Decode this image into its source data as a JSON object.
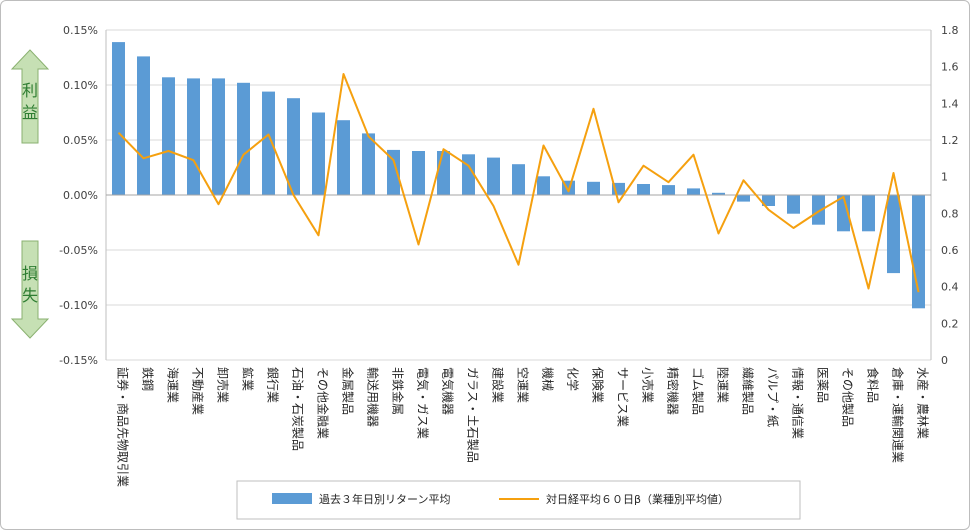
{
  "chart_data": {
    "type": "bar+line",
    "categories": [
      "証券・商品先物取引業",
      "鉄鋼",
      "海運業",
      "不動産業",
      "卸売業",
      "鉱業",
      "銀行業",
      "石油・石炭製品",
      "その他金融業",
      "金属製品",
      "輸送用機器",
      "非鉄金属",
      "電気・ガス業",
      "電気機器",
      "ガラス・土石製品",
      "建設業",
      "空運業",
      "機械",
      "化学",
      "保険業",
      "サービス業",
      "小売業",
      "精密機器",
      "ゴム製品",
      "陸運業",
      "繊維製品",
      "パルプ・紙",
      "情報・通信業",
      "医薬品",
      "その他製品",
      "食料品",
      "倉庫・運輸関連業",
      "水産・農林業"
    ],
    "series": [
      {
        "name": "過去３年日別リターン平均",
        "type": "bar",
        "axis": "left",
        "color": "#5b9bd5",
        "values": [
          0.00139,
          0.00126,
          0.00107,
          0.00106,
          0.00106,
          0.00102,
          0.00094,
          0.00088,
          0.00075,
          0.00068,
          0.00056,
          0.00041,
          0.0004,
          0.0004,
          0.00037,
          0.00034,
          0.00028,
          0.00017,
          0.00013,
          0.00012,
          0.00011,
          0.0001,
          9e-05,
          6e-05,
          2e-05,
          -6e-05,
          -0.0001,
          -0.00017,
          -0.00027,
          -0.00033,
          -0.00033,
          -0.00071,
          -0.00103
        ]
      },
      {
        "name": "対日経平均６０日β（業種別平均値）",
        "type": "line",
        "axis": "right",
        "color": "#f5a00f",
        "values": [
          1.24,
          1.1,
          1.14,
          1.09,
          0.85,
          1.12,
          1.23,
          0.9,
          0.68,
          1.56,
          1.22,
          1.09,
          0.63,
          1.15,
          1.06,
          0.84,
          0.52,
          1.17,
          0.92,
          1.37,
          0.86,
          1.06,
          0.97,
          1.12,
          0.69,
          0.98,
          0.82,
          0.72,
          0.81,
          0.89,
          0.39,
          1.02,
          0.37
        ]
      }
    ],
    "y_left": {
      "ylim": [
        -0.0015,
        0.0015
      ],
      "ticks": [
        0.0015,
        0.001,
        0.0005,
        0,
        -0.0005,
        -0.001,
        -0.0015
      ],
      "tick_labels": [
        "0.15%",
        "0.10%",
        "0.05%",
        "0.00%",
        "-0.05%",
        "-0.10%",
        "-0.15%"
      ]
    },
    "y_right": {
      "ylim": [
        0,
        1.8
      ],
      "ticks": [
        1.8,
        1.6,
        1.4,
        1.2,
        1,
        0.8,
        0.6,
        0.4,
        0.2,
        0
      ],
      "tick_labels": [
        "1.8",
        "1.6",
        "1.4",
        "1.2",
        "1",
        "0.8",
        "0.6",
        "0.4",
        "0.2",
        "0"
      ]
    },
    "grid": true,
    "legend_position": "bottom",
    "annotations": [
      {
        "label": "利益",
        "direction": "up",
        "color": "#c6e0b4",
        "text_color": "#2e7d32"
      },
      {
        "label": "損失",
        "direction": "down",
        "color": "#c6e0b4",
        "text_color": "#2e7d32"
      }
    ]
  }
}
